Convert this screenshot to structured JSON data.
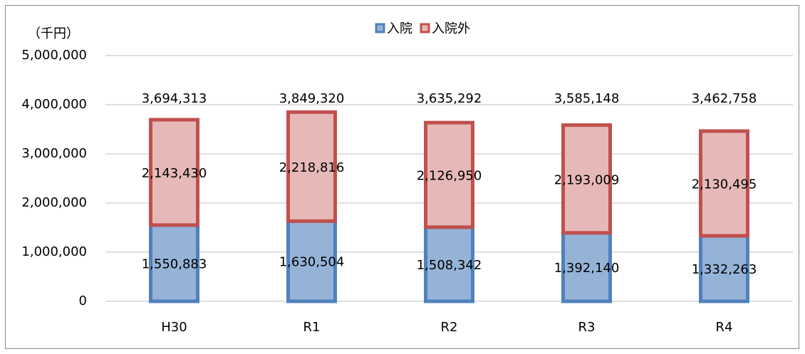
{
  "chart_data": {
    "type": "stacked_bar",
    "y_unit_label": "（千円）",
    "categories": [
      "H30",
      "R1",
      "R2",
      "R3",
      "R4"
    ],
    "series": [
      {
        "name": "入院",
        "color": "#95b3d7",
        "edge_color": "#4f81bd",
        "values": [
          1550883,
          1630504,
          1508342,
          1392140,
          1332263
        ],
        "value_labels": [
          "1,550,883",
          "1,630,504",
          "1,508,342",
          "1,392,140",
          "1,332,263"
        ]
      },
      {
        "name": "入院外",
        "color": "#e6b9b8",
        "edge_color": "#c0504d",
        "values": [
          2143430,
          2218816,
          2126950,
          2193009,
          2130495
        ],
        "value_labels": [
          "2,143,430",
          "2,218,816",
          "2,126,950",
          "2,193,009",
          "2,130,495"
        ]
      }
    ],
    "totals": {
      "values": [
        3694313,
        3849320,
        3635292,
        3585148,
        3462758
      ],
      "value_labels": [
        "3,694,313",
        "3,849,320",
        "3,635,292",
        "3,585,148",
        "3,462,758"
      ]
    },
    "ylim": [
      0,
      5000000
    ],
    "yticks": [
      0,
      {
        "value": 1000000,
        "label": "1,000,000"
      },
      {
        "value": 2000000,
        "label": "2,000,000"
      },
      {
        "value": 3000000,
        "label": "3,000,000"
      },
      {
        "value": 4000000,
        "label": "4,000,000"
      },
      {
        "value": 5000000,
        "label": "5,000,000"
      }
    ],
    "grid": true
  }
}
